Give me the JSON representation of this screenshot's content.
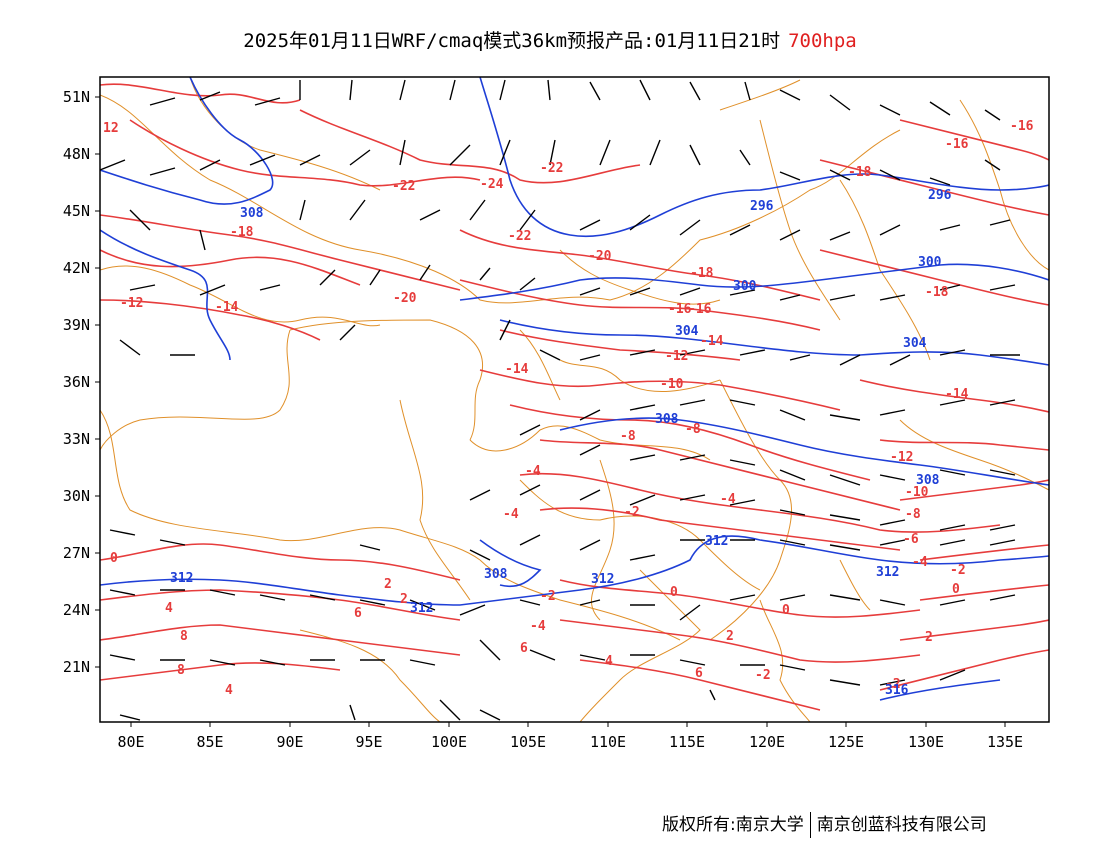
{
  "title": {
    "text": "2025年01月11日WRF/cmaq模式36km预报产品:01月11日21时",
    "level": "700hpa"
  },
  "axes": {
    "lat_labels": [
      "51N",
      "48N",
      "45N",
      "42N",
      "39N",
      "36N",
      "33N",
      "30N",
      "27N",
      "24N",
      "21N"
    ],
    "lon_labels": [
      "80E",
      "85E",
      "90E",
      "95E",
      "100E",
      "105E",
      "110E",
      "115E",
      "120E",
      "125E",
      "130E",
      "135E"
    ]
  },
  "colors": {
    "temperature": "#e63c3c",
    "geopotential": "#1f3fd6",
    "boundary": "#e0902a",
    "wind": "#000000"
  },
  "temp_labels": [
    "12",
    "-22",
    "-24",
    "-22",
    "-22",
    "-18",
    "-16",
    "-16",
    "-18",
    "-20",
    "-12",
    "-14",
    "-20",
    "-16",
    "-18",
    "-18",
    "-16",
    "-14",
    "-12",
    "-14",
    "-10",
    "-14",
    "-8",
    "-8",
    "-12",
    "-10",
    "-4",
    "-4",
    "-2",
    "-4",
    "-8",
    "-6",
    "-4",
    "-2",
    "0",
    "0",
    "-2",
    "0",
    "2",
    "2",
    "-4",
    "4",
    "6",
    "2",
    "8",
    "8",
    "6",
    "6",
    "4",
    "2",
    "4",
    "-2",
    "0",
    "-2"
  ],
  "geo_labels": [
    "308",
    "296",
    "296",
    "300",
    "300",
    "304",
    "304",
    "308",
    "308",
    "312",
    "312",
    "312",
    "312",
    "308",
    "312",
    "316"
  ],
  "footer": {
    "left": "版权所有:南京大学",
    "right": "南京创蓝科技有限公司"
  }
}
